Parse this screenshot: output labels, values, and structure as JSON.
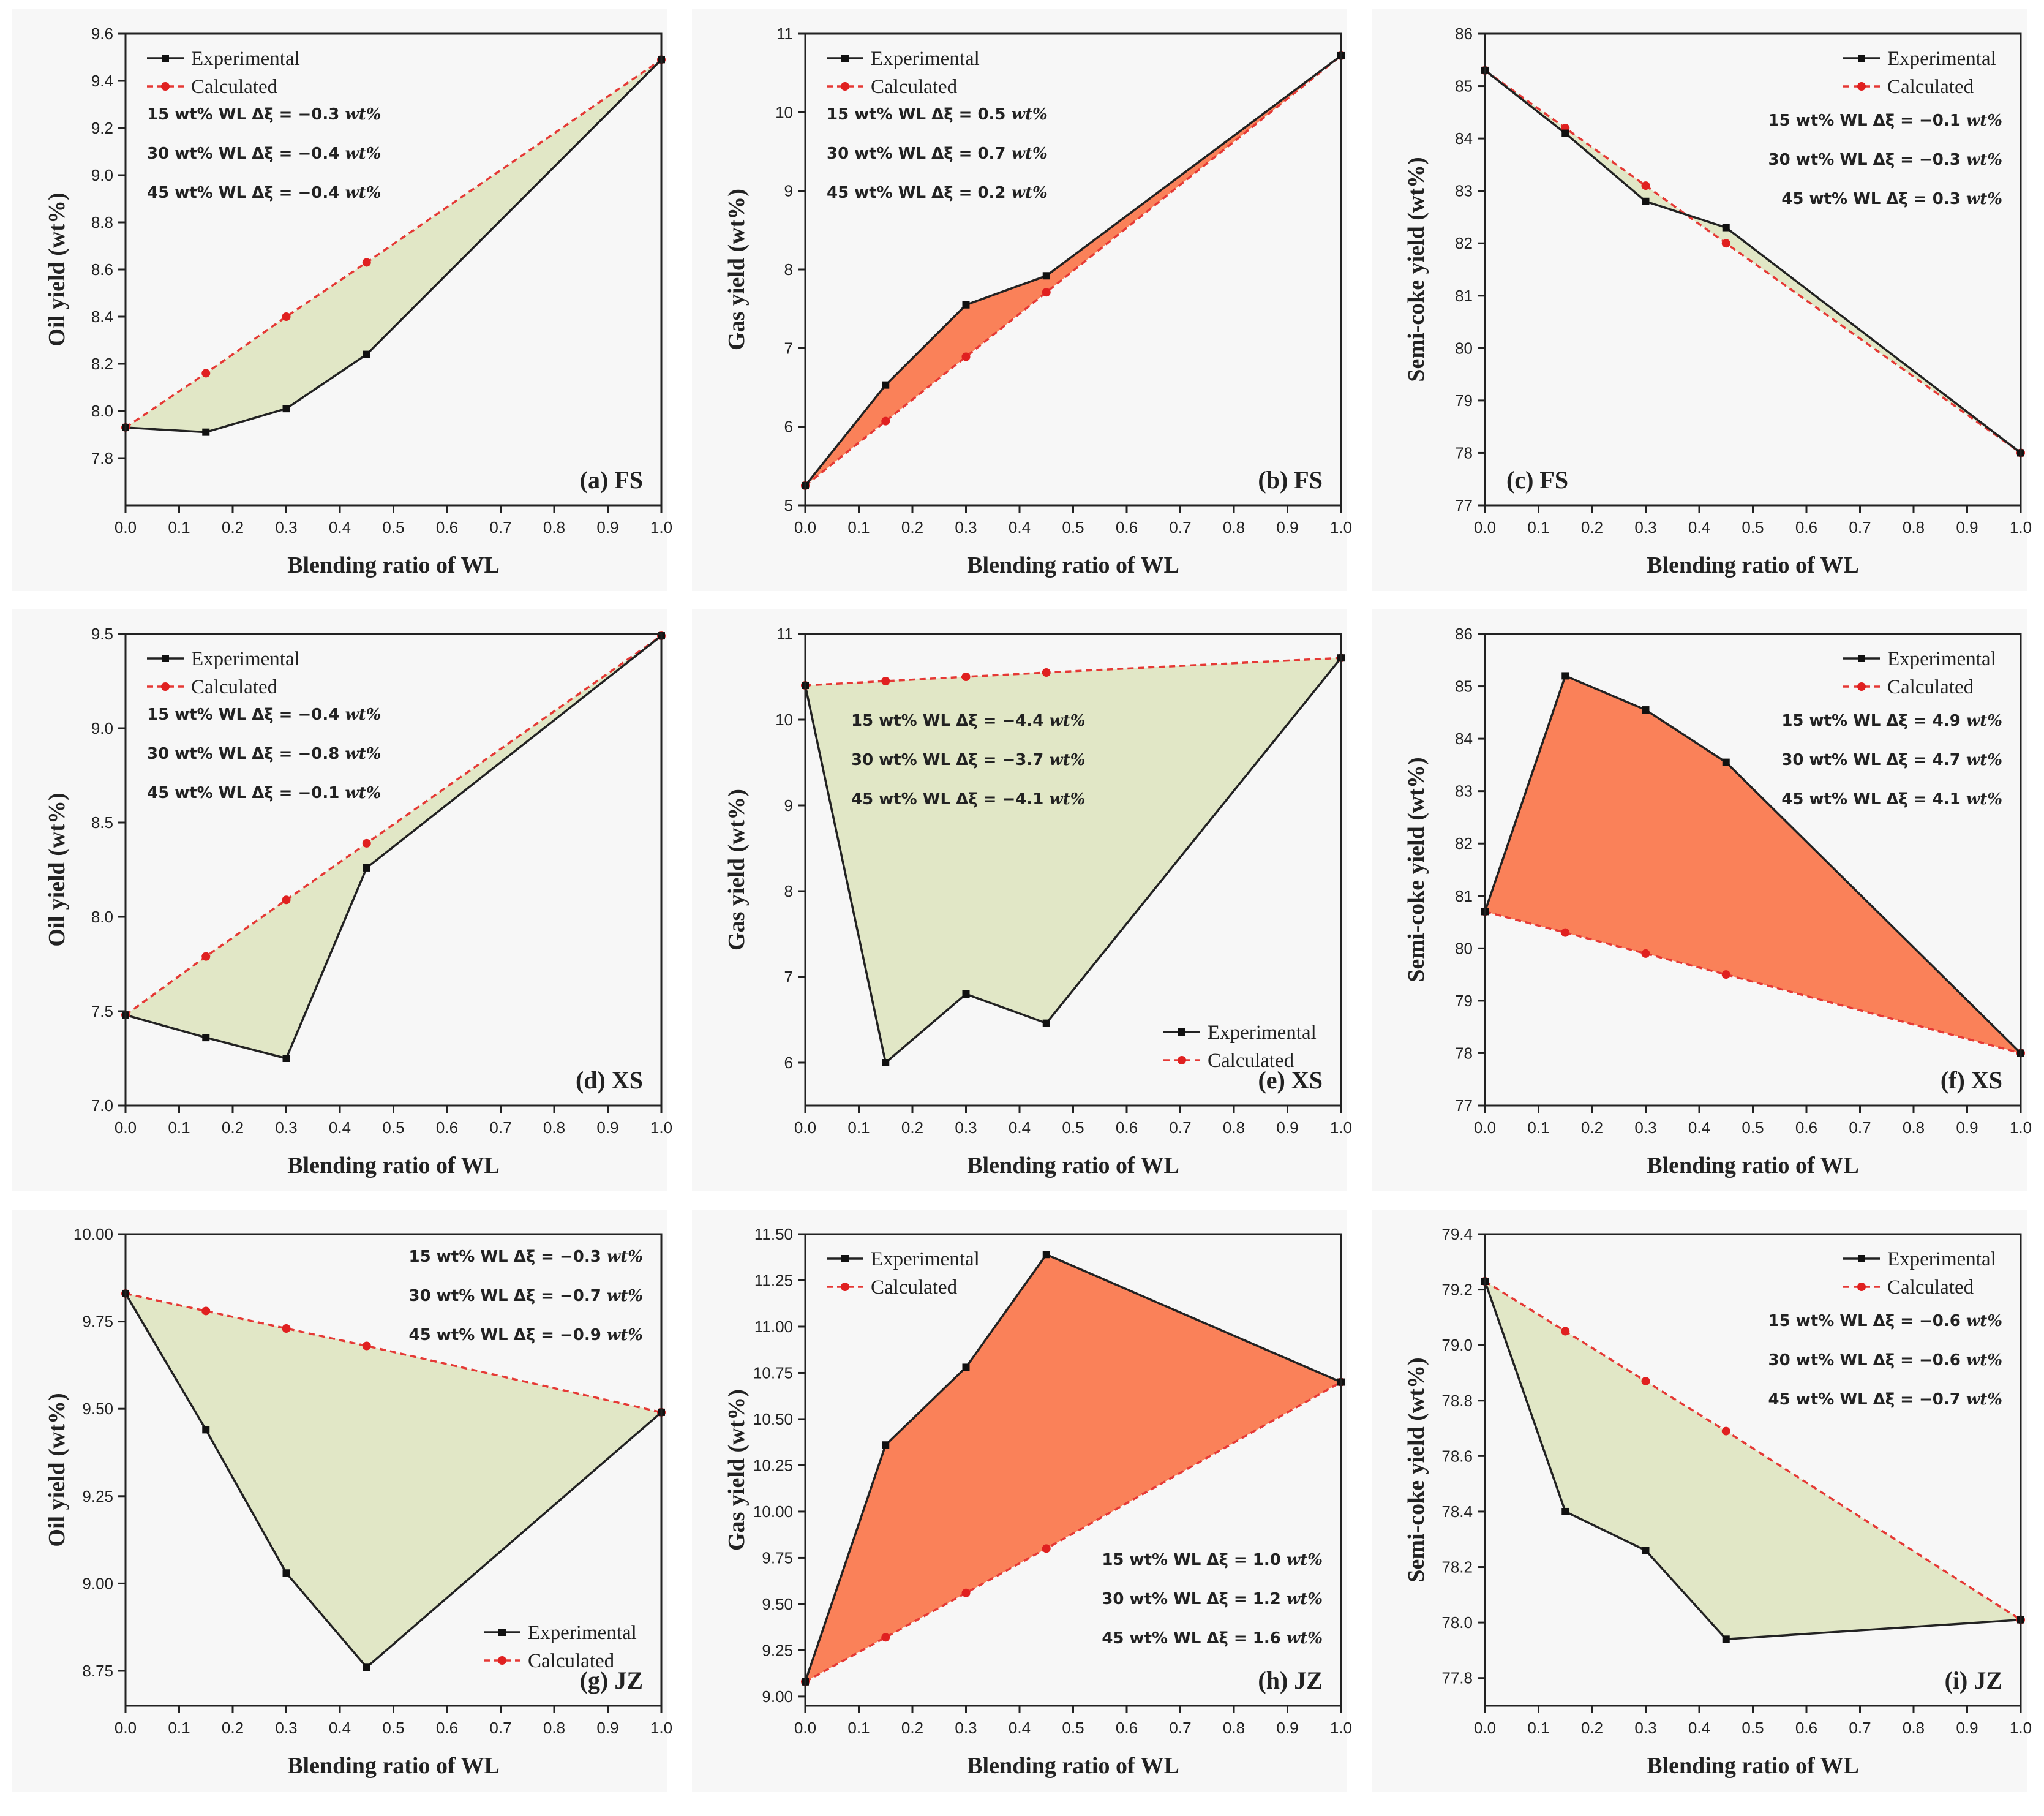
{
  "figure": {
    "colors": {
      "negative_fill": "#dfe6c3",
      "positive_fill": "#fa7a50",
      "experimental": "#111111",
      "calculated": "#e02020"
    },
    "legend": {
      "experimental": "Experimental",
      "calculated": "Calculated"
    }
  },
  "chart_data": [
    {
      "type": "line",
      "id": "a",
      "panel_label": "(a) FS",
      "xlabel": "Blending ratio of WL",
      "ylabel": "Oil yield (wt%)",
      "xlim": [
        0,
        1
      ],
      "ylim": [
        7.6,
        9.6
      ],
      "xticks": [
        "0.0",
        "0.1",
        "0.2",
        "0.3",
        "0.4",
        "0.5",
        "0.6",
        "0.7",
        "0.8",
        "0.9",
        "1.0"
      ],
      "yticks": [
        "7.8",
        "8.0",
        "8.2",
        "8.4",
        "8.6",
        "8.8",
        "9.0",
        "9.2",
        "9.4",
        "9.6"
      ],
      "x": [
        0,
        0.15,
        0.3,
        0.45,
        1.0
      ],
      "series": [
        {
          "name": "Experimental",
          "values": [
            7.93,
            7.91,
            8.01,
            8.24,
            9.49
          ]
        },
        {
          "name": "Calculated",
          "values": [
            7.93,
            8.16,
            8.4,
            8.63,
            9.49
          ]
        }
      ],
      "fill": "negative",
      "legend_pos": "top-left",
      "anno_pos": "top-left",
      "annotations": [
        {
          "prefix": "15 wt% WL Δξ = −0.3 ",
          "unit": "wt%"
        },
        {
          "prefix": "30 wt% WL Δξ = −0.4 ",
          "unit": "wt%"
        },
        {
          "prefix": "45 wt% WL Δξ = −0.4 ",
          "unit": "wt%"
        }
      ]
    },
    {
      "type": "line",
      "id": "b",
      "panel_label": "(b) FS",
      "xlabel": "Blending ratio of WL",
      "ylabel": "Gas yield (wt%)",
      "xlim": [
        0,
        1
      ],
      "ylim": [
        5,
        11
      ],
      "xticks": [
        "0.0",
        "0.1",
        "0.2",
        "0.3",
        "0.4",
        "0.5",
        "0.6",
        "0.7",
        "0.8",
        "0.9",
        "1.0"
      ],
      "yticks": [
        "5",
        "6",
        "7",
        "8",
        "9",
        "10",
        "11"
      ],
      "x": [
        0,
        0.15,
        0.3,
        0.45,
        1.0
      ],
      "series": [
        {
          "name": "Experimental",
          "values": [
            5.25,
            6.53,
            7.55,
            7.92,
            10.72
          ]
        },
        {
          "name": "Calculated",
          "values": [
            5.25,
            6.07,
            6.89,
            7.71,
            10.72
          ]
        }
      ],
      "fill": "positive",
      "legend_pos": "top-left",
      "anno_pos": "top-left",
      "annotations": [
        {
          "prefix": "15 wt% WL Δξ = 0.5 ",
          "unit": "wt%"
        },
        {
          "prefix": "30 wt% WL Δξ = 0.7 ",
          "unit": "wt%"
        },
        {
          "prefix": "45 wt% WL Δξ = 0.2 ",
          "unit": "wt%"
        }
      ]
    },
    {
      "type": "line",
      "id": "c",
      "panel_label": "(c) FS",
      "xlabel": "Blending ratio of WL",
      "ylabel": "Semi-coke yield (wt%)",
      "xlim": [
        0,
        1
      ],
      "ylim": [
        77,
        86
      ],
      "xticks": [
        "0.0",
        "0.1",
        "0.2",
        "0.3",
        "0.4",
        "0.5",
        "0.6",
        "0.7",
        "0.8",
        "0.9",
        "1.0"
      ],
      "yticks": [
        "77",
        "78",
        "79",
        "80",
        "81",
        "82",
        "83",
        "84",
        "85",
        "86"
      ],
      "x": [
        0,
        0.15,
        0.3,
        0.45,
        1.0
      ],
      "series": [
        {
          "name": "Experimental",
          "values": [
            85.3,
            84.1,
            82.8,
            82.3,
            78.0
          ]
        },
        {
          "name": "Calculated",
          "values": [
            85.3,
            84.2,
            83.1,
            82.0,
            78.0
          ]
        }
      ],
      "fill": "negative",
      "legend_pos": "top-right",
      "anno_pos": "top-right",
      "label_pos": "bottom-left",
      "annotations": [
        {
          "prefix": "15 wt% WL Δξ = −0.1 ",
          "unit": "wt%"
        },
        {
          "prefix": "30 wt% WL Δξ = −0.3 ",
          "unit": "wt%"
        },
        {
          "prefix": "45 wt% WL Δξ =   0.3 ",
          "unit": "wt%"
        }
      ]
    },
    {
      "type": "line",
      "id": "d",
      "panel_label": "(d) XS",
      "xlabel": "Blending ratio of WL",
      "ylabel": "Oil yield (wt%)",
      "xlim": [
        0,
        1
      ],
      "ylim": [
        7.0,
        9.5
      ],
      "xticks": [
        "0.0",
        "0.1",
        "0.2",
        "0.3",
        "0.4",
        "0.5",
        "0.6",
        "0.7",
        "0.8",
        "0.9",
        "1.0"
      ],
      "yticks": [
        "7.0",
        "7.5",
        "8.0",
        "8.5",
        "9.0",
        "9.5"
      ],
      "x": [
        0,
        0.15,
        0.3,
        0.45,
        1.0
      ],
      "series": [
        {
          "name": "Experimental",
          "values": [
            7.48,
            7.36,
            7.25,
            8.26,
            9.49
          ]
        },
        {
          "name": "Calculated",
          "values": [
            7.48,
            7.79,
            8.09,
            8.39,
            9.49
          ]
        }
      ],
      "fill": "negative",
      "legend_pos": "top-left",
      "anno_pos": "top-left",
      "annotations": [
        {
          "prefix": "15 wt% WL Δξ = −0.4 ",
          "unit": "wt%"
        },
        {
          "prefix": "30 wt% WL Δξ = −0.8 ",
          "unit": "wt%"
        },
        {
          "prefix": "45 wt% WL Δξ = −0.1 ",
          "unit": "wt%"
        }
      ]
    },
    {
      "type": "line",
      "id": "e",
      "panel_label": "(e) XS",
      "xlabel": "Blending ratio of WL",
      "ylabel": "Gas yield (wt%)",
      "xlim": [
        0,
        1
      ],
      "ylim": [
        5.5,
        11
      ],
      "xticks": [
        "0.0",
        "0.1",
        "0.2",
        "0.3",
        "0.4",
        "0.5",
        "0.6",
        "0.7",
        "0.8",
        "0.9",
        "1.0"
      ],
      "yticks": [
        "6",
        "7",
        "8",
        "9",
        "10",
        "11"
      ],
      "x": [
        0,
        0.15,
        0.3,
        0.45,
        1.0
      ],
      "series": [
        {
          "name": "Experimental",
          "values": [
            10.4,
            6.0,
            6.8,
            6.46,
            10.72
          ]
        },
        {
          "name": "Calculated",
          "values": [
            10.4,
            10.45,
            10.5,
            10.55,
            10.72
          ]
        }
      ],
      "fill": "negative",
      "legend_pos": "bottom-right",
      "anno_pos": "top-left-low",
      "annotations": [
        {
          "prefix": "15 wt% WL Δξ = −4.4 ",
          "unit": "wt%"
        },
        {
          "prefix": "30 wt% WL Δξ = −3.7 ",
          "unit": "wt%"
        },
        {
          "prefix": "45 wt% WL Δξ = −4.1 ",
          "unit": "wt%"
        }
      ]
    },
    {
      "type": "line",
      "id": "f",
      "panel_label": "(f) XS",
      "xlabel": "Blending ratio of WL",
      "ylabel": "Semi-coke yield (wt%)",
      "xlim": [
        0,
        1
      ],
      "ylim": [
        77,
        86
      ],
      "xticks": [
        "0.0",
        "0.1",
        "0.2",
        "0.3",
        "0.4",
        "0.5",
        "0.6",
        "0.7",
        "0.8",
        "0.9",
        "1.0"
      ],
      "yticks": [
        "77",
        "78",
        "79",
        "80",
        "81",
        "82",
        "83",
        "84",
        "85",
        "86"
      ],
      "x": [
        0,
        0.15,
        0.3,
        0.45,
        1.0
      ],
      "series": [
        {
          "name": "Experimental",
          "values": [
            80.7,
            85.2,
            84.55,
            83.55,
            78.0
          ]
        },
        {
          "name": "Calculated",
          "values": [
            80.7,
            80.3,
            79.9,
            79.5,
            78.0
          ]
        }
      ],
      "fill": "positive",
      "legend_pos": "top-right",
      "anno_pos": "top-right",
      "annotations": [
        {
          "prefix": "15 wt% WL Δξ = 4.9 ",
          "unit": "wt%"
        },
        {
          "prefix": "30 wt% WL Δξ = 4.7 ",
          "unit": "wt%"
        },
        {
          "prefix": "45 wt% WL Δξ = 4.1 ",
          "unit": "wt%"
        }
      ]
    },
    {
      "type": "line",
      "id": "g",
      "panel_label": "(g) JZ",
      "xlabel": "Blending ratio of WL",
      "ylabel": "Oil yield (wt%)",
      "xlim": [
        0,
        1
      ],
      "ylim": [
        8.65,
        10.0
      ],
      "xticks": [
        "0.0",
        "0.1",
        "0.2",
        "0.3",
        "0.4",
        "0.5",
        "0.6",
        "0.7",
        "0.8",
        "0.9",
        "1.0"
      ],
      "yticks": [
        "8.75",
        "9.00",
        "9.25",
        "9.50",
        "9.75",
        "10.00"
      ],
      "x": [
        0,
        0.15,
        0.3,
        0.45,
        1.0
      ],
      "series": [
        {
          "name": "Experimental",
          "values": [
            9.83,
            9.44,
            9.03,
            8.76,
            9.49
          ]
        },
        {
          "name": "Calculated",
          "values": [
            9.83,
            9.78,
            9.73,
            9.68,
            9.49
          ]
        }
      ],
      "fill": "negative",
      "legend_pos": "bottom-right",
      "anno_pos": "top-right",
      "annotations": [
        {
          "prefix": "15 wt% WL Δξ = −0.3 ",
          "unit": "wt%"
        },
        {
          "prefix": "30 wt% WL Δξ = −0.7 ",
          "unit": "wt%"
        },
        {
          "prefix": "45 wt% WL Δξ = −0.9 ",
          "unit": "wt%"
        }
      ]
    },
    {
      "type": "line",
      "id": "h",
      "panel_label": "(h) JZ",
      "xlabel": "Blending ratio of WL",
      "ylabel": "Gas yield (wt%)",
      "xlim": [
        0,
        1
      ],
      "ylim": [
        8.95,
        11.5
      ],
      "xticks": [
        "0.0",
        "0.1",
        "0.2",
        "0.3",
        "0.4",
        "0.5",
        "0.6",
        "0.7",
        "0.8",
        "0.9",
        "1.0"
      ],
      "yticks": [
        "9.00",
        "9.25",
        "9.50",
        "9.75",
        "10.00",
        "10.25",
        "10.50",
        "10.75",
        "11.00",
        "11.25",
        "11.50"
      ],
      "x": [
        0,
        0.15,
        0.3,
        0.45,
        1.0
      ],
      "series": [
        {
          "name": "Experimental",
          "values": [
            9.08,
            10.36,
            10.78,
            11.39,
            10.7
          ]
        },
        {
          "name": "Calculated",
          "values": [
            9.08,
            9.32,
            9.56,
            9.8,
            10.7
          ]
        }
      ],
      "fill": "positive",
      "legend_pos": "top-left",
      "anno_pos": "bottom-right",
      "annotations": [
        {
          "prefix": "15 wt% WL Δξ = 1.0 ",
          "unit": "wt%"
        },
        {
          "prefix": "30 wt% WL Δξ = 1.2 ",
          "unit": "wt%"
        },
        {
          "prefix": "45 wt% WL Δξ = 1.6 ",
          "unit": "wt%"
        }
      ]
    },
    {
      "type": "line",
      "id": "i",
      "panel_label": "(i) JZ",
      "xlabel": "Blending ratio of WL",
      "ylabel": "Semi-coke yield (wt%)",
      "xlim": [
        0,
        1
      ],
      "ylim": [
        77.7,
        79.4
      ],
      "xticks": [
        "0.0",
        "0.1",
        "0.2",
        "0.3",
        "0.4",
        "0.5",
        "0.6",
        "0.7",
        "0.8",
        "0.9",
        "1.0"
      ],
      "yticks": [
        "77.8",
        "78.0",
        "78.2",
        "78.4",
        "78.6",
        "78.8",
        "79.0",
        "79.2",
        "79.4"
      ],
      "x": [
        0,
        0.15,
        0.3,
        0.45,
        1.0
      ],
      "series": [
        {
          "name": "Experimental",
          "values": [
            79.23,
            78.4,
            78.26,
            77.94,
            78.01
          ]
        },
        {
          "name": "Calculated",
          "values": [
            79.23,
            79.05,
            78.87,
            78.69,
            78.01
          ]
        }
      ],
      "fill": "negative",
      "legend_pos": "top-right",
      "anno_pos": "top-right",
      "annotations": [
        {
          "prefix": "15 wt% WL Δξ = −0.6 ",
          "unit": "wt%"
        },
        {
          "prefix": "30 wt% WL Δξ = −0.6 ",
          "unit": "wt%"
        },
        {
          "prefix": "45 wt% WL Δξ = −0.7 ",
          "unit": "wt%"
        }
      ]
    }
  ]
}
